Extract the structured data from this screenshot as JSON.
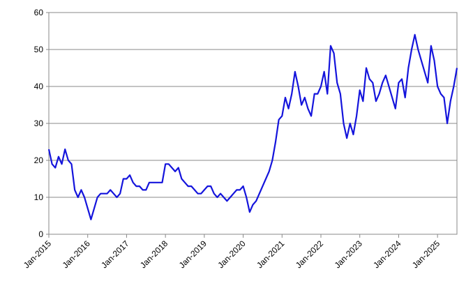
{
  "chart_data": {
    "type": "line",
    "categories": [
      "Jan-2015",
      null,
      null,
      null,
      null,
      null,
      null,
      null,
      null,
      null,
      null,
      null,
      "Jan-2016",
      null,
      null,
      null,
      null,
      null,
      null,
      null,
      null,
      null,
      null,
      null,
      "Jan-2017",
      null,
      null,
      null,
      null,
      null,
      null,
      null,
      null,
      null,
      null,
      null,
      "Jan-2018",
      null,
      null,
      null,
      null,
      null,
      null,
      null,
      null,
      null,
      null,
      null,
      "Jan-2019",
      null,
      null,
      null,
      null,
      null,
      null,
      null,
      null,
      null,
      null,
      null,
      "Jan-2020",
      null,
      null,
      null,
      null,
      null,
      null,
      null,
      null,
      null,
      null,
      null,
      "Jan-2021",
      null,
      null,
      null,
      null,
      null,
      null,
      null,
      null,
      null,
      null,
      null,
      "Jan-2022",
      null,
      null,
      null,
      null,
      null,
      null,
      null,
      null,
      null,
      null,
      null,
      "Jan-2023",
      null,
      null,
      null,
      null,
      null,
      null,
      null,
      null,
      null,
      null,
      null,
      "Jan-2024",
      null,
      null,
      null,
      null,
      null,
      null,
      null,
      null,
      null,
      null,
      null,
      "Jan-2025",
      null,
      null,
      null,
      null,
      null,
      null
    ],
    "series": [
      {
        "color": "#1414dc",
        "values": [
          23,
          19,
          18,
          21,
          19,
          23,
          20,
          19,
          12,
          10,
          12,
          10,
          7,
          4,
          7,
          10,
          11,
          11,
          11,
          12,
          11,
          10,
          11,
          15,
          15,
          16,
          14,
          13,
          13,
          12,
          12,
          14,
          14,
          14,
          14,
          14,
          19,
          19,
          18,
          17,
          18,
          15,
          14,
          13,
          13,
          12,
          11,
          11,
          12,
          13,
          13,
          11,
          10,
          11,
          10,
          9,
          10,
          11,
          12,
          12,
          13,
          10,
          6,
          8,
          9,
          11,
          13,
          15,
          17,
          20,
          25,
          31,
          32,
          37,
          34,
          38,
          44,
          40,
          35,
          37,
          34,
          32,
          38,
          38,
          40,
          44,
          38,
          51,
          49,
          41,
          38,
          30,
          26,
          30,
          27,
          32,
          39,
          36,
          45,
          42,
          41,
          36,
          38,
          41,
          43,
          40,
          37,
          34,
          41,
          42,
          37,
          45,
          50,
          54,
          50,
          47,
          44,
          41,
          51,
          47,
          40,
          38,
          37,
          30,
          36,
          40,
          45
        ]
      }
    ],
    "ylim": [
      0,
      60
    ],
    "yticks": [
      0,
      10,
      20,
      30,
      40,
      50,
      60
    ],
    "grid": true
  }
}
